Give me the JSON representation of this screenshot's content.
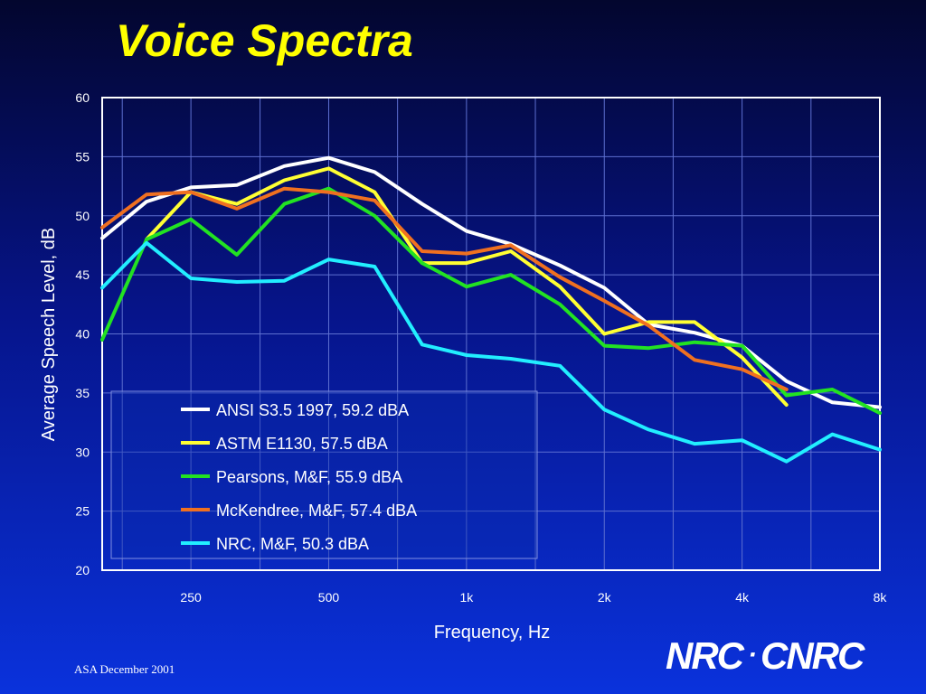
{
  "colors": {
    "background_top": "#03062e",
    "background_bottom": "#0a32dc",
    "title": "#ffff00",
    "text": "#ffffff",
    "grid": "#5d6fd0"
  },
  "logo": {
    "left": "NRC",
    "separator": "·",
    "right": "CNRC"
  },
  "footer": "ASA December 2001",
  "chart_data": {
    "type": "line",
    "title": "Voice Spectra",
    "xlabel": "Frequency, Hz",
    "ylabel": "Average Speech Level, dB",
    "x_scale": "log (1/3-octave bands)",
    "x": [
      160,
      200,
      250,
      315,
      400,
      500,
      630,
      800,
      1000,
      1250,
      1600,
      2000,
      2500,
      3150,
      4000,
      5000,
      6300,
      8000
    ],
    "x_ticks": [
      {
        "value": 250,
        "label": "250"
      },
      {
        "value": 500,
        "label": "500"
      },
      {
        "value": 1000,
        "label": "1k"
      },
      {
        "value": 2000,
        "label": "2k"
      },
      {
        "value": 4000,
        "label": "4k"
      },
      {
        "value": 8000,
        "label": "8k"
      }
    ],
    "ylim": [
      20,
      60
    ],
    "y_ticks": [
      20,
      25,
      30,
      35,
      40,
      45,
      50,
      55,
      60
    ],
    "grid": true,
    "legend_position": "bottom-left",
    "series": [
      {
        "name": "ANSI S3.5 1997, 59.2 dBA",
        "color": "#ffffff",
        "values": [
          48.1,
          51.2,
          52.4,
          52.6,
          54.2,
          54.9,
          53.7,
          51.0,
          48.7,
          47.6,
          45.8,
          43.9,
          40.8,
          40.1,
          39.0,
          36.0,
          34.2,
          33.8
        ]
      },
      {
        "name": "ASTM E1130, 57.5 dBA",
        "color": "#ffff33",
        "values": [
          null,
          48.0,
          52.0,
          51.0,
          53.0,
          54.0,
          52.0,
          46.0,
          46.0,
          47.0,
          44.0,
          40.0,
          41.0,
          41.0,
          38.0,
          34.0,
          null,
          null
        ]
      },
      {
        "name": "Pearsons, M&F, 55.9 dBA",
        "color": "#22e222",
        "values": [
          39.5,
          48.0,
          49.7,
          46.7,
          51.0,
          52.3,
          50.0,
          46.0,
          44.0,
          45.0,
          42.5,
          39.0,
          38.8,
          39.3,
          39.0,
          34.8,
          35.3,
          33.3
        ]
      },
      {
        "name": "McKendree, M&F, 57.4 dBA",
        "color": "#f07020",
        "values": [
          49.0,
          51.8,
          52.0,
          50.6,
          52.3,
          52.0,
          51.3,
          47.0,
          46.8,
          47.5,
          44.8,
          42.8,
          40.7,
          37.8,
          37.0,
          35.3,
          null,
          null
        ]
      },
      {
        "name": "NRC, M&F, 50.3 dBA",
        "color": "#22eeff",
        "values": [
          43.9,
          47.7,
          44.7,
          44.4,
          44.5,
          46.3,
          45.7,
          39.1,
          38.2,
          37.9,
          37.3,
          33.6,
          31.9,
          30.7,
          31.0,
          29.2,
          31.5,
          30.2
        ]
      }
    ]
  }
}
